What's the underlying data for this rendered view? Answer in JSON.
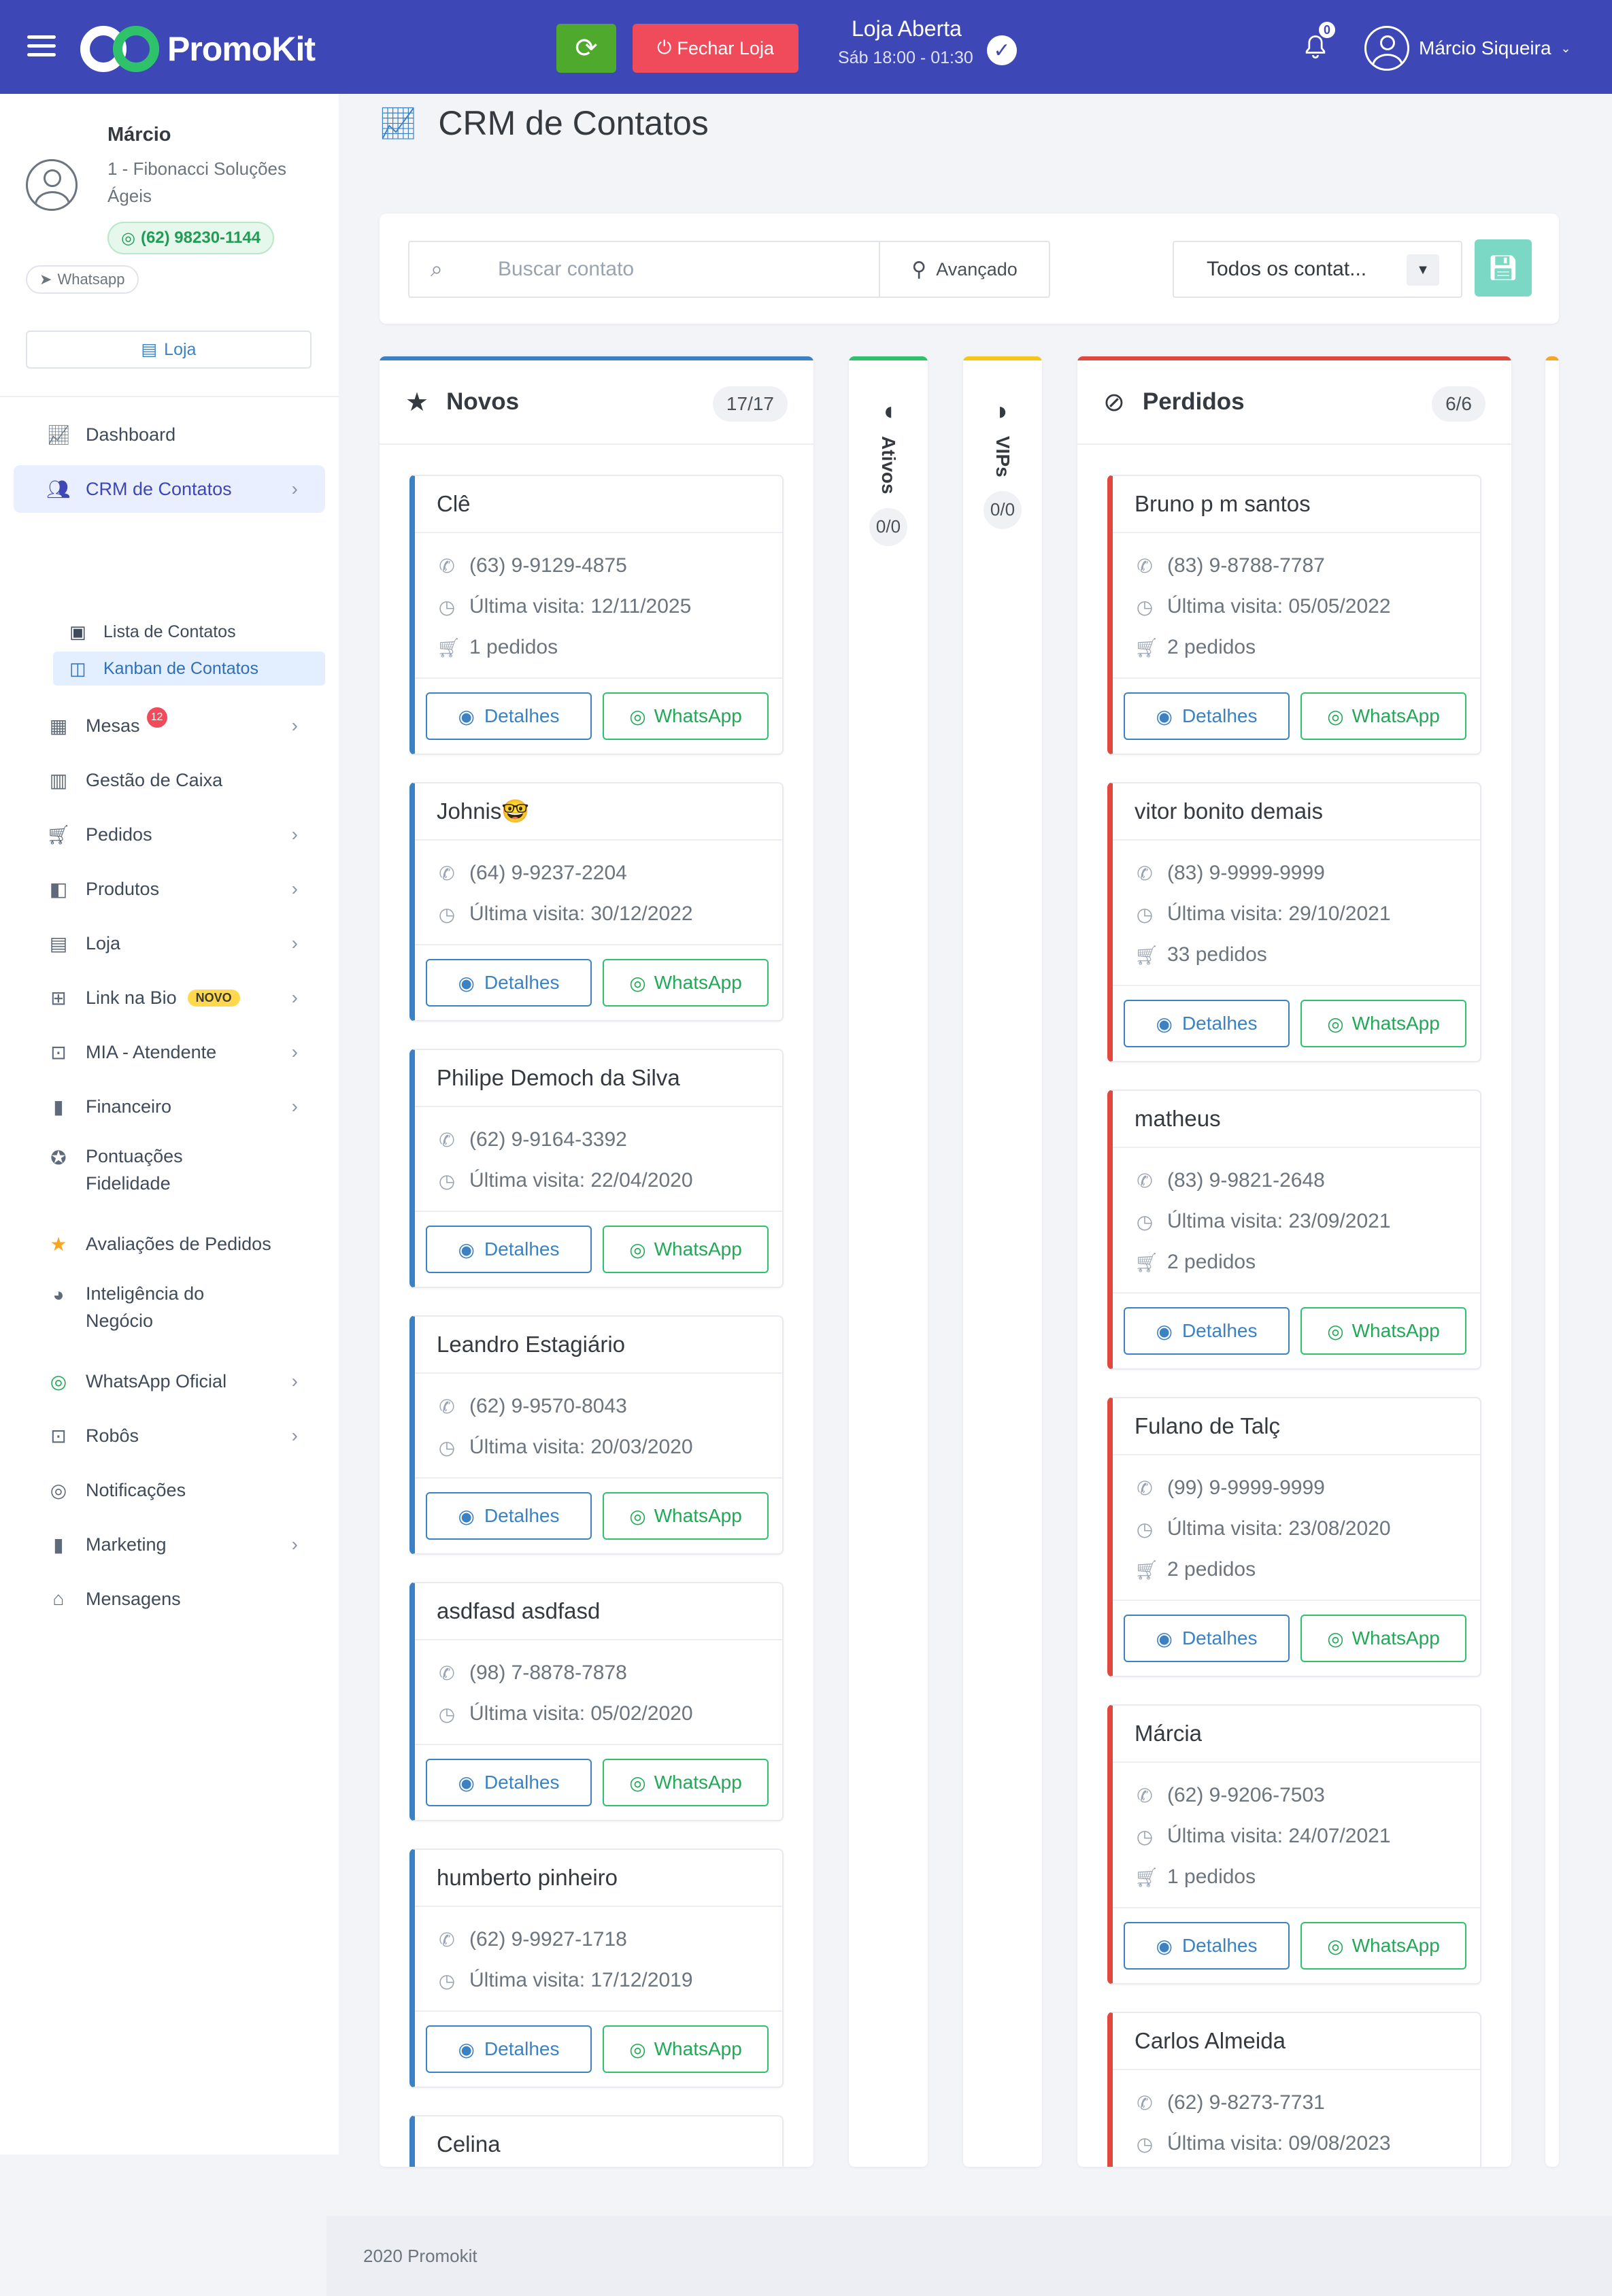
{
  "topbar": {
    "brand": "PromoKit",
    "close_store_label": "Fechar Loja",
    "store_status": "Loja Aberta",
    "store_hours": "Sáb 18:00 - 01:30",
    "notif_count": "0",
    "user_name": "Márcio Siqueira"
  },
  "sidebar": {
    "name": "Márcio",
    "company": "1 - Fibonacci Soluções Ágeis",
    "phone": "(62) 98230-1144",
    "channel": "Whatsapp",
    "store_button": "Loja",
    "items": [
      {
        "label": "Dashboard",
        "icon": "chart-line-icon"
      },
      {
        "label": "CRM de Contatos",
        "icon": "users-icon"
      },
      {
        "label": "Mesas",
        "icon": "table-icon",
        "badge": "12"
      },
      {
        "label": "Gestão de Caixa",
        "icon": "cash-register-icon"
      },
      {
        "label": "Pedidos",
        "icon": "cart-icon"
      },
      {
        "label": "Produtos",
        "icon": "box-icon"
      },
      {
        "label": "Loja",
        "icon": "building-icon"
      },
      {
        "label": "Link na Bio",
        "icon": "sitemap-icon",
        "badge": "NOVO"
      },
      {
        "label": "MIA - Atendente",
        "icon": "robot-icon"
      },
      {
        "label": "Financeiro",
        "icon": "bar-chart-icon"
      },
      {
        "label": "Pontuações Fidelidade",
        "icon": "medal-icon"
      },
      {
        "label": "Avaliações de Pedidos",
        "icon": "star-icon"
      },
      {
        "label": "Inteligência do Negócio",
        "icon": "pie-chart-icon"
      },
      {
        "label": "WhatsApp Oficial",
        "icon": "whatsapp-icon"
      },
      {
        "label": "Robôs",
        "icon": "robot-icon"
      },
      {
        "label": "Notificações",
        "icon": "whatsapp-icon"
      },
      {
        "label": "Marketing",
        "icon": "bar-chart-icon"
      },
      {
        "label": "Mensagens",
        "icon": "inbox-icon"
      }
    ],
    "sub_items": [
      {
        "label": "Lista de Contatos"
      },
      {
        "label": "Kanban de Contatos"
      }
    ]
  },
  "main": {
    "title": "CRM de Contatos",
    "search_placeholder": "Buscar contato",
    "advanced_label": "Avançado",
    "filter_value": "Todos os contat..."
  },
  "columns": {
    "novos": {
      "title": "Novos",
      "count": "17/17",
      "color": "#3b82c4"
    },
    "ativos": {
      "title": "Ativos",
      "count": "0/0",
      "color": "#2ec36a"
    },
    "vips": {
      "title": "VIPs",
      "count": "0/0",
      "color": "#f5c518"
    },
    "perdidos": {
      "title": "Perdidos",
      "count": "6/6",
      "color": "#e0483d"
    }
  },
  "buttons": {
    "details": "Detalhes",
    "whatsapp": "WhatsApp"
  },
  "novos_cards": [
    {
      "name": "Clê",
      "phone": "(63) 9-9129-4875",
      "visit": "Última visita: 12/11/2025",
      "orders": "1 pedidos"
    },
    {
      "name": "Johnis🤓",
      "phone": "(64) 9-9237-2204",
      "visit": "Última visita: 30/12/2022"
    },
    {
      "name": "Philipe Democh da Silva",
      "phone": "(62) 9-9164-3392",
      "visit": "Última visita: 22/04/2020"
    },
    {
      "name": "Leandro Estagiário",
      "phone": "(62) 9-9570-8043",
      "visit": "Última visita: 20/03/2020"
    },
    {
      "name": "asdfasd asdfasd",
      "phone": "(98) 7-8878-7878",
      "visit": "Última visita: 05/02/2020"
    },
    {
      "name": "humberto pinheiro",
      "phone": "(62) 9-9927-1718",
      "visit": "Última visita: 17/12/2019"
    },
    {
      "name": "Celina"
    }
  ],
  "perdidos_cards": [
    {
      "name": "Bruno p m santos",
      "phone": "(83) 9-8788-7787",
      "visit": "Última visita: 05/05/2022",
      "orders": "2 pedidos"
    },
    {
      "name": "vitor bonito demais",
      "phone": "(83) 9-9999-9999",
      "visit": "Última visita: 29/10/2021",
      "orders": "33 pedidos"
    },
    {
      "name": "matheus",
      "phone": "(83) 9-9821-2648",
      "visit": "Última visita: 23/09/2021",
      "orders": "2 pedidos"
    },
    {
      "name": "Fulano de Talç",
      "phone": "(99) 9-9999-9999",
      "visit": "Última visita: 23/08/2020",
      "orders": "2 pedidos"
    },
    {
      "name": "Márcia",
      "phone": "(62) 9-9206-7503",
      "visit": "Última visita: 24/07/2021",
      "orders": "1 pedidos"
    },
    {
      "name": "Carlos Almeida",
      "phone": "(62) 9-8273-7731",
      "visit": "Última visita: 09/08/2023"
    }
  ],
  "footer": "2020 Promokit"
}
